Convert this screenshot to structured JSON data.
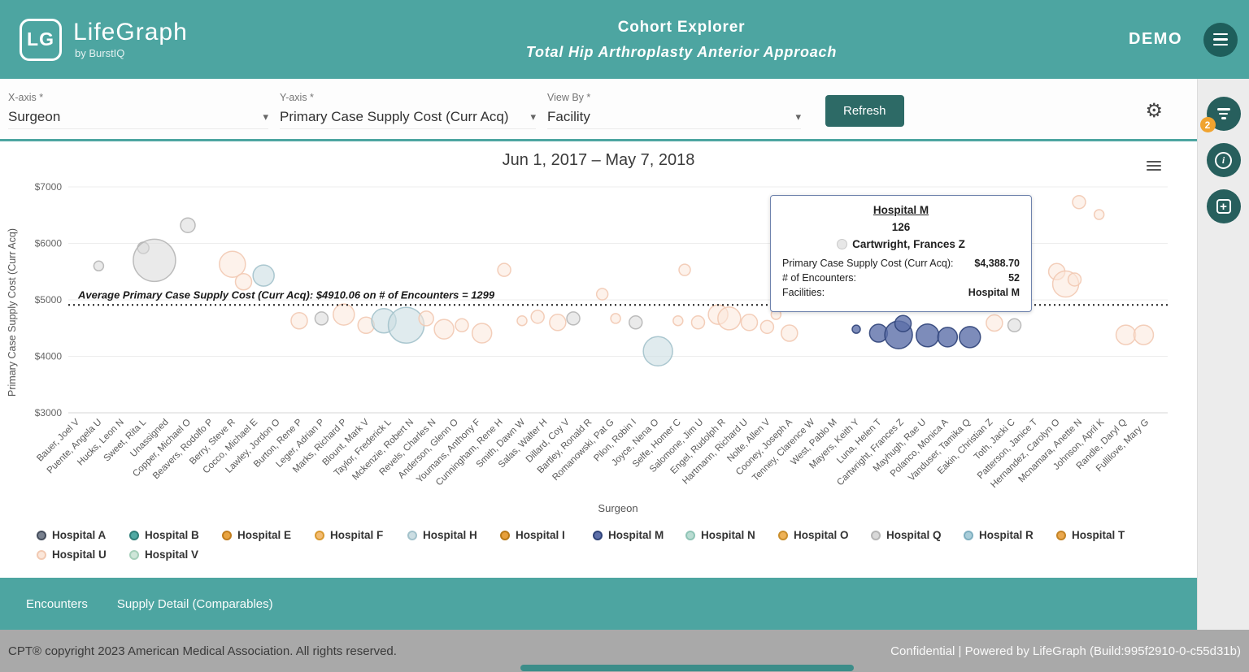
{
  "header": {
    "logo_monogram": "LG",
    "app_name": "LifeGraph",
    "app_subtitle": "by BurstIQ",
    "title": "Cohort Explorer",
    "subtitle": "Total Hip Arthroplasty Anterior Approach",
    "user_label": "DEMO"
  },
  "filters": {
    "x_axis": {
      "label": "X-axis *",
      "value": "Surgeon"
    },
    "y_axis": {
      "label": "Y-axis *",
      "value": "Primary Case Supply Cost (Curr Acq)"
    },
    "view_by": {
      "label": "View By *",
      "value": "Facility"
    },
    "refresh_label": "Refresh"
  },
  "right_rail": {
    "filter_badge": "2"
  },
  "chart_data": {
    "type": "scatter",
    "title": "Jun 1, 2017 – May 7, 2018",
    "xlabel": "Surgeon",
    "ylabel": "Primary Case Supply Cost (Curr Acq)",
    "ylim": [
      3000,
      7000
    ],
    "ytick_values": [
      3000,
      4000,
      5000,
      6000,
      7000
    ],
    "ytick_labels": [
      "$3000",
      "$4000",
      "$5000",
      "$6000",
      "$7000"
    ],
    "grid": true,
    "average_line": {
      "value": 4910.06,
      "label": "Average Primary Case Supply Cost (Curr Acq): $4910.06 on # of Encounters = 1299"
    },
    "categories": [
      "Bauer, Joel V",
      "Puente, Angela U",
      "Hucks, Leon N",
      "Sweet, Rita L",
      "Unassigned",
      "Copper, Michael O",
      "Beavers, Rodolfo P",
      "Berry, Steve R",
      "Cocco, Michael E",
      "Lawley, Jordon O",
      "Burton, Rene P",
      "Leger, Adrian P",
      "Marks, Richard P",
      "Blount, Mark V",
      "Taylor, Frederick L",
      "Mckenzie, Robert N",
      "Revels, Charles N",
      "Anderson, Glenn O",
      "Youmans, Anthony F",
      "Cunningham, Rene H",
      "Smith, Dawn W",
      "Salas, Walter H",
      "Dillard, Coy V",
      "Bartley, Ronald R",
      "Romanowski, Pat G",
      "Pilon, Robin I",
      "Joyce, Nena O",
      "Selfe, Homer C",
      "Salomone, Jim U",
      "Engel, Rudolph R",
      "Hartmann, Richard U",
      "Nolte, Allen V",
      "Cooney, Joseph A",
      "Tenney, Clarence W",
      "West, Pablo M",
      "Mayers, Keith Y",
      "Luna, Helen T",
      "Cartwright, Frances Z",
      "Mayhugh, Rae U",
      "Polanco, Monica A",
      "Vanduser, Tamika Q",
      "Eakin, Christian Z",
      "Toth, Jacki C",
      "Patterson, Janice T",
      "Hernandez, Carolyn O",
      "Mcnamara, Anette N",
      "Johnson, April K",
      "Randle, Daryl Q",
      "Fullilove, Mary G"
    ],
    "points": [
      {
        "x": 1,
        "v": 5600,
        "r": 6,
        "h": "Q"
      },
      {
        "x": 3,
        "v": 5920,
        "r": 7,
        "h": "Q"
      },
      {
        "x": 3.5,
        "v": 5700,
        "r": 26,
        "h": "Q"
      },
      {
        "x": 5,
        "v": 6320,
        "r": 9,
        "h": "Q"
      },
      {
        "x": 7,
        "v": 5630,
        "r": 16,
        "h": "U"
      },
      {
        "x": 7.5,
        "v": 5320,
        "r": 10,
        "h": "U"
      },
      {
        "x": 8.4,
        "v": 5430,
        "r": 13,
        "h": "H"
      },
      {
        "x": 10,
        "v": 4630,
        "r": 10,
        "h": "U"
      },
      {
        "x": 11,
        "v": 4670,
        "r": 8,
        "h": "Q"
      },
      {
        "x": 12,
        "v": 4740,
        "r": 13,
        "h": "U"
      },
      {
        "x": 13,
        "v": 4550,
        "r": 10,
        "h": "U"
      },
      {
        "x": 13.8,
        "v": 4630,
        "r": 15,
        "h": "H"
      },
      {
        "x": 14.8,
        "v": 4550,
        "r": 22,
        "h": "H"
      },
      {
        "x": 15.7,
        "v": 4670,
        "r": 9,
        "h": "U"
      },
      {
        "x": 16.5,
        "v": 4480,
        "r": 12,
        "h": "U"
      },
      {
        "x": 17.3,
        "v": 4550,
        "r": 8,
        "h": "U"
      },
      {
        "x": 18.2,
        "v": 4410,
        "r": 12,
        "h": "U"
      },
      {
        "x": 19.2,
        "v": 5530,
        "r": 8,
        "h": "U"
      },
      {
        "x": 20,
        "v": 4630,
        "r": 6,
        "h": "U"
      },
      {
        "x": 20.7,
        "v": 4700,
        "r": 8,
        "h": "U"
      },
      {
        "x": 21.6,
        "v": 4600,
        "r": 10,
        "h": "U"
      },
      {
        "x": 22.3,
        "v": 4670,
        "r": 8,
        "h": "Q"
      },
      {
        "x": 23.6,
        "v": 5100,
        "r": 7,
        "h": "U"
      },
      {
        "x": 24.2,
        "v": 4670,
        "r": 6,
        "h": "U"
      },
      {
        "x": 25.1,
        "v": 4600,
        "r": 8,
        "h": "Q"
      },
      {
        "x": 26.1,
        "v": 4090,
        "r": 18,
        "h": "H"
      },
      {
        "x": 27,
        "v": 4630,
        "r": 6,
        "h": "U"
      },
      {
        "x": 27.3,
        "v": 5530,
        "r": 7,
        "h": "U"
      },
      {
        "x": 27.9,
        "v": 4600,
        "r": 8,
        "h": "U"
      },
      {
        "x": 28.8,
        "v": 4740,
        "r": 12,
        "h": "U"
      },
      {
        "x": 29.3,
        "v": 4670,
        "r": 14,
        "h": "U"
      },
      {
        "x": 30.2,
        "v": 4600,
        "r": 10,
        "h": "U"
      },
      {
        "x": 31,
        "v": 4520,
        "r": 8,
        "h": "U"
      },
      {
        "x": 31.4,
        "v": 4740,
        "r": 6,
        "h": "U"
      },
      {
        "x": 32,
        "v": 4410,
        "r": 10,
        "h": "U"
      },
      {
        "x": 35,
        "v": 4480,
        "r": 5,
        "h": "M"
      },
      {
        "x": 36,
        "v": 4410,
        "r": 11,
        "h": "M"
      },
      {
        "x": 36.9,
        "v": 4380,
        "r": 17,
        "h": "M"
      },
      {
        "x": 37.1,
        "v": 4580,
        "r": 10,
        "h": "M"
      },
      {
        "x": 38.2,
        "v": 4370,
        "r": 14,
        "h": "M"
      },
      {
        "x": 39.1,
        "v": 4340,
        "r": 12,
        "h": "M"
      },
      {
        "x": 40.1,
        "v": 4340,
        "r": 13,
        "h": "M"
      },
      {
        "x": 41.2,
        "v": 4590,
        "r": 10,
        "h": "U"
      },
      {
        "x": 42.1,
        "v": 4550,
        "r": 8,
        "h": "Q"
      },
      {
        "x": 44,
        "v": 5500,
        "r": 10,
        "h": "U"
      },
      {
        "x": 44.4,
        "v": 5280,
        "r": 16,
        "h": "U"
      },
      {
        "x": 44.8,
        "v": 5360,
        "r": 8,
        "h": "U"
      },
      {
        "x": 45,
        "v": 6730,
        "r": 8,
        "h": "U"
      },
      {
        "x": 45.9,
        "v": 6510,
        "r": 6,
        "h": "U"
      },
      {
        "x": 47.1,
        "v": 4380,
        "r": 12,
        "h": "U"
      },
      {
        "x": 47.9,
        "v": 4380,
        "r": 12,
        "h": "U"
      }
    ]
  },
  "tooltip": {
    "facility": "Hospital M",
    "count": "126",
    "surgeon": "Cartwright, Frances Z",
    "cost_label": "Primary Case Supply Cost (Curr Acq):",
    "cost_value": "$4,388.70",
    "encounters_label": "# of Encounters:",
    "encounters_value": "52",
    "facilities_label": "Facilities:",
    "facilities_value": "Hospital M"
  },
  "legend": {
    "items": [
      {
        "key": "A",
        "label": "Hospital A",
        "fill": "#79818f",
        "stroke": "#454d5c",
        "opacity": 0.85,
        "row": 1
      },
      {
        "key": "B",
        "label": "Hospital B",
        "fill": "#4fa9a3",
        "stroke": "#2f7f79",
        "opacity": 0.85,
        "row": 1
      },
      {
        "key": "E",
        "label": "Hospital E",
        "fill": "#e9a441",
        "stroke": "#c17d1e",
        "opacity": 0.8,
        "row": 1
      },
      {
        "key": "F",
        "label": "Hospital F",
        "fill": "#f3bc72",
        "stroke": "#d9992f",
        "opacity": 0.8,
        "row": 1
      },
      {
        "key": "H",
        "label": "Hospital H",
        "fill": "#ccdee3",
        "stroke": "#a3c2cb",
        "opacity": 0.6,
        "row": 1
      },
      {
        "key": "I",
        "label": "Hospital I",
        "fill": "#e7a03a",
        "stroke": "#b87a17",
        "opacity": 0.8,
        "row": 1
      },
      {
        "key": "M",
        "label": "Hospital M",
        "fill": "#5d6fa9",
        "stroke": "#2f4379",
        "opacity": 0.8,
        "row": 1
      },
      {
        "key": "N",
        "label": "Hospital N",
        "fill": "#b9dcd2",
        "stroke": "#8fc4b6",
        "opacity": 0.7,
        "row": 1
      },
      {
        "key": "O",
        "label": "Hospital O",
        "fill": "#eeb257",
        "stroke": "#ca8f2d",
        "opacity": 0.8,
        "row": 1
      },
      {
        "key": "Q",
        "label": "Hospital Q",
        "fill": "#d9d9d9",
        "stroke": "#b5b5b5",
        "opacity": 0.55,
        "row": 1
      },
      {
        "key": "R",
        "label": "Hospital R",
        "fill": "#a9cdd9",
        "stroke": "#7fafc0",
        "opacity": 0.7,
        "row": 1
      },
      {
        "key": "T",
        "label": "Hospital T",
        "fill": "#eaa84e",
        "stroke": "#c48426",
        "opacity": 0.8,
        "row": 1
      },
      {
        "key": "U",
        "label": "Hospital U",
        "fill": "#fbe7da",
        "stroke": "#f2c9b2",
        "opacity": 0.55,
        "row": 2
      },
      {
        "key": "V",
        "label": "Hospital V",
        "fill": "#cfe6d9",
        "stroke": "#a6cfba",
        "opacity": 0.7,
        "row": 2
      }
    ]
  },
  "tabs": {
    "items": [
      "Encounters",
      "Supply Detail (Comparables)"
    ]
  },
  "footer": {
    "left": "CPT® copyright 2023 American Medical Association. All rights reserved.",
    "right": "Confidential | Powered by LifeGraph (Build:995f2910-0-c55d31b)"
  },
  "colors": {
    "header_teal": "#4da5a1",
    "dark_teal": "#275f5d",
    "badge_orange": "#f0a32f",
    "footer_gray": "#a9a9a9"
  }
}
